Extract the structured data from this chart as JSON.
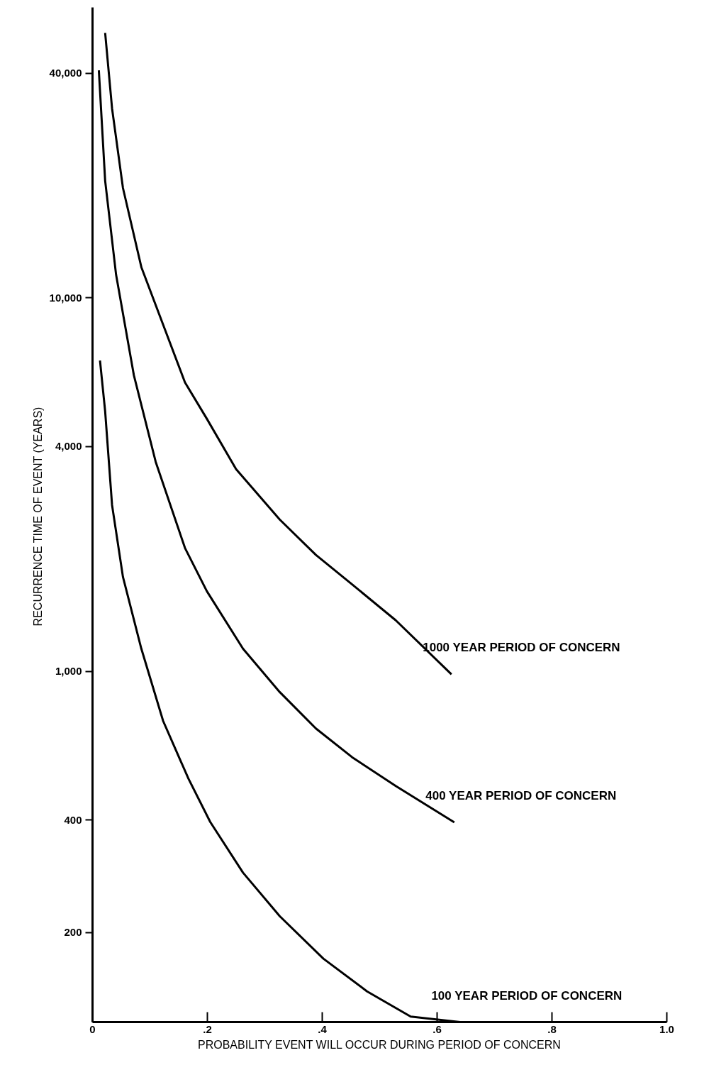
{
  "chart_data": {
    "type": "line",
    "xlabel": "PROBABILITY EVENT WILL OCCUR DURING PERIOD OF CONCERN",
    "ylabel": "RECURRENCE TIME OF EVENT  (YEARS)",
    "log": "y",
    "grid": false,
    "marker": "none",
    "line_style": "solid",
    "xlim": [
      0,
      1.0
    ],
    "ylim": [
      115,
      60000
    ],
    "xticks": [
      0,
      {
        "value": 0.2,
        "label": ".2"
      },
      {
        "value": 0.4,
        "label": ".4"
      },
      {
        "value": 0.6,
        "label": ".6"
      },
      {
        "value": 0.8,
        "label": ".8"
      },
      {
        "value": 1.0,
        "label": "1.0"
      }
    ],
    "yticks": [
      200,
      400,
      {
        "value": 1000,
        "label": "1,000"
      },
      {
        "value": 4000,
        "label": "4,000"
      },
      {
        "value": 10000,
        "label": "10,000"
      },
      {
        "value": 40000,
        "label": "40,000"
      }
    ],
    "series": [
      {
        "name": "1000 YEAR PERIOD OF CONCERN",
        "color": "#000000",
        "x": [
          0.022,
          0.034,
          0.053,
          0.085,
          0.123,
          0.161,
          0.199,
          0.25,
          0.326,
          0.389,
          0.452,
          0.528,
          0.625
        ],
        "values": [
          51300,
          32200,
          19700,
          12100,
          8480,
          5940,
          4750,
          3480,
          2550,
          2050,
          1710,
          1370,
          982
        ]
      },
      {
        "name": "400 YEAR PERIOD OF CONCERN",
        "color": "#000000",
        "x": [
          0.011,
          0.022,
          0.041,
          0.072,
          0.11,
          0.161,
          0.199,
          0.262,
          0.326,
          0.389,
          0.452,
          0.528,
          0.63
        ],
        "values": [
          40700,
          20600,
          11550,
          6210,
          3640,
          2140,
          1640,
          1150,
          880,
          703,
          589,
          493,
          394
        ]
      },
      {
        "name": "100 YEAR PERIOD OF CONCERN",
        "color": "#000000",
        "x": [
          0.013,
          0.022,
          0.034,
          0.053,
          0.085,
          0.123,
          0.167,
          0.205,
          0.262,
          0.326,
          0.402,
          0.478,
          0.554,
          0.64
        ],
        "values": [
          6800,
          4970,
          2790,
          1790,
          1150,
          736,
          516,
          395,
          289,
          221,
          170,
          139,
          119,
          115
        ]
      }
    ]
  }
}
